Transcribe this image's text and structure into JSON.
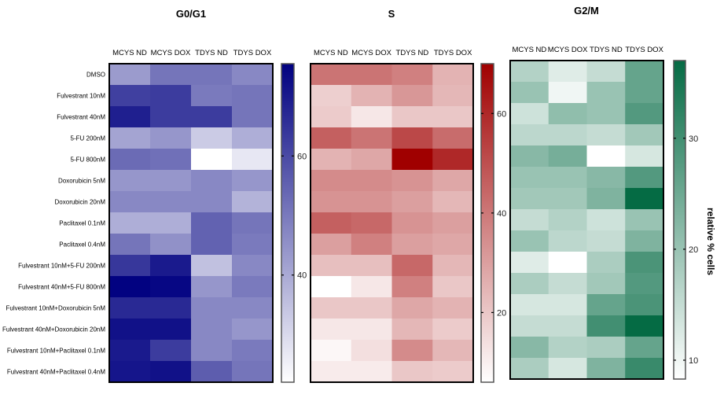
{
  "chart_data": [
    {
      "type": "heatmap",
      "title": "G0/G1",
      "columns": [
        "MCYS ND",
        "MCYS DOX",
        "TDYS ND",
        "TDYS DOX"
      ],
      "rows": [
        "DMSO",
        "Fulvestrant 10nM",
        "Fulvestrant 40nM",
        "5-FU 200nM",
        "5-FU 800nM",
        "Doxorubicin 5nM",
        "Doxorubicin 20nM",
        "Paclitaxel 0.1nM",
        "Paclitaxel 0.4nM",
        "Fulvestrant 10nM+5-FU 200nM",
        "Fulvestrant 40nM+5-FU 800nM",
        "Fulvestrant 10nM+Doxorubicin 5nM",
        "Fulvestrant 40nM+Doxorubicin 20nM",
        "Fulvestrant 10nM+Paclitaxel 0.1nM",
        "Fulvestrant 40nM+Paclitaxel 0.4nM"
      ],
      "values": [
        [
          43,
          51,
          51,
          47
        ],
        [
          62,
          63,
          50,
          51
        ],
        [
          69,
          63,
          63,
          51
        ],
        [
          41,
          44,
          33,
          39
        ],
        [
          53,
          52,
          22,
          27
        ],
        [
          44,
          44,
          47,
          44
        ],
        [
          47,
          47,
          47,
          38
        ],
        [
          39,
          39,
          55,
          51
        ],
        [
          51,
          45,
          55,
          50
        ],
        [
          64,
          70,
          35,
          47
        ],
        [
          75,
          74,
          44,
          50
        ],
        [
          67,
          67,
          47,
          47
        ],
        [
          72,
          72,
          47,
          44
        ],
        [
          70,
          63,
          47,
          50
        ],
        [
          71,
          72,
          56,
          51
        ]
      ],
      "colorbar_range": [
        22,
        75.5
      ],
      "colorbar_ticks": [
        40,
        60
      ],
      "color_low": "#ffffff",
      "color_high": "#000080"
    },
    {
      "type": "heatmap",
      "title": "S",
      "columns": [
        "MCYS ND",
        "MCYS DOX",
        "TDYS ND",
        "TDYS DOX"
      ],
      "values": [
        [
          41,
          41,
          38,
          25
        ],
        [
          18,
          25,
          32,
          24
        ],
        [
          19,
          12,
          20,
          20
        ],
        [
          46,
          41,
          52,
          43
        ],
        [
          25,
          28,
          70,
          60
        ],
        [
          35,
          35,
          33,
          28
        ],
        [
          33,
          33,
          30,
          24
        ],
        [
          46,
          44,
          33,
          30
        ],
        [
          30,
          38,
          30,
          28
        ],
        [
          22,
          22,
          44,
          24
        ],
        [
          6,
          12,
          38,
          20
        ],
        [
          20,
          20,
          28,
          25
        ],
        [
          12,
          12,
          24,
          19
        ],
        [
          8,
          14,
          35,
          24
        ],
        [
          11,
          11,
          20,
          19
        ]
      ],
      "colorbar_range": [
        6,
        70
      ],
      "colorbar_ticks": [
        20,
        40,
        60
      ],
      "color_low": "#ffffff",
      "color_high": "#a00000"
    },
    {
      "type": "heatmap",
      "title": "G2/M",
      "columns": [
        "MCYS ND",
        "MCYS DOX",
        "TDYS ND",
        "TDYS DOX"
      ],
      "values": [
        [
          17,
          12,
          15,
          26
        ],
        [
          20,
          10,
          20,
          26
        ],
        [
          14,
          21,
          20,
          28
        ],
        [
          16,
          16,
          15,
          19
        ],
        [
          22,
          24,
          8.3,
          13
        ],
        [
          20,
          20,
          22,
          28
        ],
        [
          19,
          19,
          23,
          37
        ],
        [
          15,
          17,
          14,
          20
        ],
        [
          20,
          16,
          15,
          23
        ],
        [
          12,
          8.3,
          18,
          29
        ],
        [
          18,
          15,
          19,
          28
        ],
        [
          13,
          13,
          26,
          29
        ],
        [
          15,
          15,
          30,
          37
        ],
        [
          22,
          17,
          18,
          26
        ],
        [
          18,
          13,
          23,
          31
        ]
      ],
      "colorbar_range": [
        8.3,
        37
      ],
      "colorbar_ticks": [
        10,
        20,
        30
      ],
      "colorbar_label": "relative % cells",
      "color_low": "#ffffff",
      "color_high": "#056b44"
    }
  ]
}
